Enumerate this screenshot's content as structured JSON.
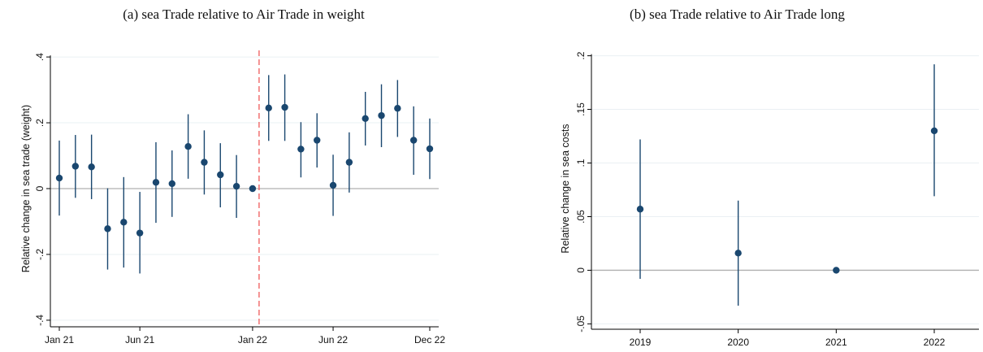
{
  "chart_data": [
    {
      "type": "scatter",
      "title": "(a) sea Trade relative to Air Trade in weight",
      "xlabel": "",
      "ylabel": "Relative change in sea trade  (weight)",
      "x_ticks": [
        "Jan 21",
        "Jun 21",
        "Jan 22",
        "Jun 22",
        "Dec 22"
      ],
      "y_ticks": [
        ".4",
        ".2",
        "0",
        "-.2",
        "-.4"
      ],
      "ylim": [
        -0.42,
        0.42
      ],
      "grid": true,
      "reference_line": {
        "value": 0,
        "color": "#b0b0b0"
      },
      "event_line": {
        "x": "Jan 22",
        "color": "#ef5a5a",
        "style": "dashed"
      },
      "series": [
        {
          "x": [
            "Jan 21",
            "Feb 21",
            "Mar 21",
            "Apr 21",
            "May 21",
            "Jun 21",
            "Jul 21",
            "Aug 21",
            "Sep 21",
            "Oct 21",
            "Nov 21",
            "Dec 21",
            "Jan 22",
            "Feb 22",
            "Mar 22",
            "Apr 22",
            "May 22",
            "Jun 22",
            "Jul 22",
            "Aug 22",
            "Sep 22",
            "Oct 22",
            "Nov 22",
            "Dec 22"
          ],
          "values": [
            0.032,
            0.068,
            0.066,
            -0.122,
            -0.102,
            -0.135,
            0.019,
            0.015,
            0.128,
            0.08,
            0.042,
            0.007,
            0.0,
            0.245,
            0.247,
            0.12,
            0.147,
            0.01,
            0.08,
            0.213,
            0.222,
            0.244,
            0.147,
            0.121
          ],
          "ci_low": [
            -0.082,
            -0.028,
            -0.032,
            -0.246,
            -0.24,
            -0.258,
            -0.104,
            -0.086,
            0.03,
            -0.018,
            -0.057,
            -0.089,
            0.0,
            0.145,
            0.145,
            0.034,
            0.064,
            -0.083,
            -0.012,
            0.131,
            0.126,
            0.157,
            0.042,
            0.029
          ],
          "ci_high": [
            0.146,
            0.163,
            0.164,
            0.001,
            0.035,
            -0.01,
            0.141,
            0.116,
            0.226,
            0.177,
            0.138,
            0.102,
            0.0,
            0.345,
            0.347,
            0.202,
            0.229,
            0.103,
            0.171,
            0.294,
            0.317,
            0.33,
            0.25,
            0.213
          ]
        }
      ]
    },
    {
      "type": "scatter",
      "title": "(b) sea Trade relative to Air Trade long",
      "xlabel": "",
      "ylabel": "Relative change in sea costs",
      "categories": [
        "2019",
        "2020",
        "2021",
        "2022"
      ],
      "y_ticks": [
        ".2",
        ".15",
        ".1",
        ".05",
        "0",
        "-.05"
      ],
      "ylim": [
        -0.055,
        0.205
      ],
      "grid": true,
      "reference_line": {
        "value": 0,
        "color": "#b0b0b0"
      },
      "series": [
        {
          "values": [
            0.057,
            0.016,
            0.0,
            0.13
          ],
          "ci_low": [
            -0.008,
            -0.033,
            0.0,
            0.069
          ],
          "ci_high": [
            0.122,
            0.065,
            0.0,
            0.192
          ]
        }
      ]
    }
  ],
  "colors": {
    "marker": "#1a476f",
    "grid": "#eaf0f3",
    "zero_line": "#b0b0b0",
    "event_line": "#ef5a5a",
    "axis": "#000000"
  }
}
